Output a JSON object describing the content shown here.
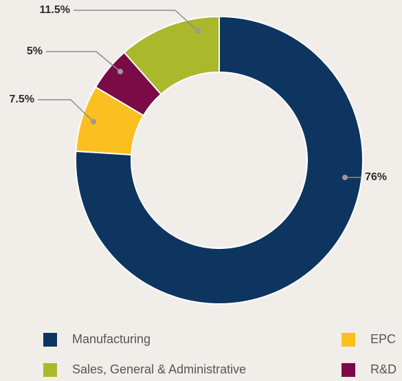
{
  "chart_data": {
    "type": "pie",
    "categories": [
      "Manufacturing",
      "EPC",
      "R&D",
      "Sales, General & Administrative"
    ],
    "values": [
      76,
      7.5,
      5,
      11.5
    ],
    "value_labels": [
      "76%",
      "7.5%",
      "5%",
      "11.5%"
    ],
    "colors": [
      "#0d3560",
      "#fbbf1f",
      "#7a0b47",
      "#aab82c"
    ],
    "legend": true
  }
}
